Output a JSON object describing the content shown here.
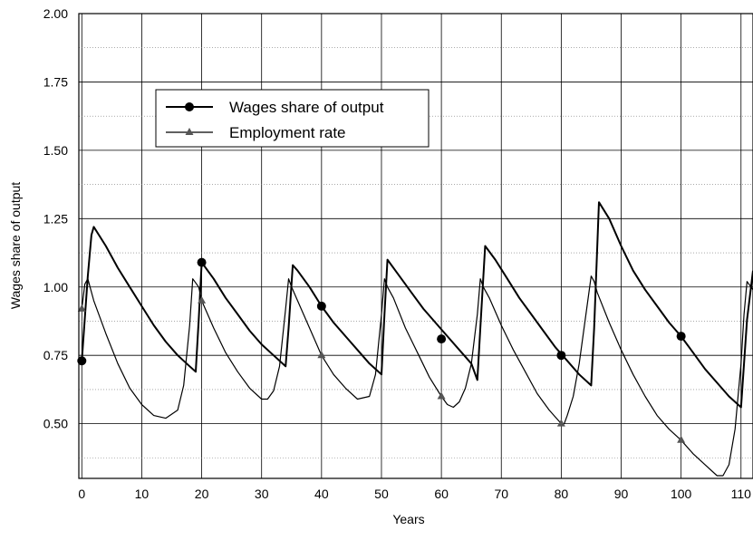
{
  "chart_data": {
    "type": "line",
    "title": "",
    "xlabel": "Years",
    "ylabel": "Wages share of output",
    "xlim": [
      -0.5,
      112
    ],
    "ylim": [
      0.3,
      2.0
    ],
    "x_ticks": [
      0,
      10,
      20,
      30,
      40,
      50,
      60,
      70,
      80,
      90,
      100,
      110
    ],
    "y_ticks": [
      0.5,
      0.75,
      1.0,
      1.25,
      1.5,
      1.75,
      2.0
    ],
    "x_tick_labels": [
      "0",
      "10",
      "20",
      "30",
      "40",
      "50",
      "60",
      "70",
      "80",
      "90",
      "100",
      "110"
    ],
    "y_tick_labels": [
      "0.50",
      "0.75",
      "1.00",
      "1.25",
      "1.50",
      "1.75",
      "2.00"
    ],
    "grid": true,
    "legend_position": "top-left",
    "series": [
      {
        "name": "Wages share of output",
        "marker": "circle",
        "line_width": 2,
        "color": "#000000",
        "x": [
          0,
          1,
          1.6,
          2,
          4,
          6,
          8,
          10,
          12,
          14,
          16,
          18,
          19,
          19.5,
          20,
          22,
          24,
          26,
          28,
          30,
          32,
          34,
          34.5,
          35.2,
          36,
          38,
          40,
          42,
          44,
          46,
          48,
          50,
          50.5,
          51,
          53,
          55,
          57,
          59,
          61,
          63,
          65,
          66,
          66.5,
          67.3,
          69,
          71,
          73,
          75,
          77,
          79,
          81,
          83,
          85,
          85.5,
          86.3,
          88,
          90,
          92,
          94,
          96,
          98,
          100,
          102,
          104,
          106,
          108,
          110,
          111,
          112
        ],
        "y": [
          0.73,
          1.04,
          1.19,
          1.22,
          1.15,
          1.07,
          1.0,
          0.93,
          0.86,
          0.8,
          0.75,
          0.71,
          0.69,
          0.88,
          1.09,
          1.03,
          0.96,
          0.9,
          0.84,
          0.79,
          0.75,
          0.71,
          0.85,
          1.08,
          1.06,
          1.0,
          0.93,
          0.87,
          0.82,
          0.77,
          0.72,
          0.68,
          0.9,
          1.1,
          1.04,
          0.98,
          0.92,
          0.87,
          0.82,
          0.77,
          0.72,
          0.66,
          0.85,
          1.15,
          1.1,
          1.03,
          0.96,
          0.9,
          0.84,
          0.78,
          0.73,
          0.68,
          0.64,
          0.85,
          1.31,
          1.25,
          1.15,
          1.06,
          0.99,
          0.93,
          0.87,
          0.82,
          0.76,
          0.7,
          0.65,
          0.6,
          0.56,
          0.88,
          1.06
        ],
        "markers_x": [
          0,
          20,
          40,
          60,
          80,
          100
        ],
        "markers_y": [
          0.73,
          1.09,
          0.93,
          0.81,
          0.75,
          0.82
        ]
      },
      {
        "name": "Employment rate",
        "marker": "triangle",
        "line_width": 1.2,
        "color": "#000000",
        "x": [
          0,
          0.5,
          1,
          2,
          4,
          6,
          8,
          10,
          12,
          14,
          16,
          17,
          18,
          18.5,
          19.5,
          20,
          22,
          24,
          26,
          28,
          30,
          31,
          32,
          33,
          34,
          34.5,
          35,
          36,
          38,
          40,
          42,
          44,
          46,
          48,
          49,
          50,
          50.5,
          51,
          52,
          54,
          56,
          58,
          60,
          61,
          62,
          63,
          64,
          65,
          66,
          66.5,
          67,
          68,
          70,
          72,
          74,
          76,
          78,
          80,
          80.5,
          81,
          82,
          83,
          84,
          85,
          85.5,
          86,
          88,
          90,
          92,
          94,
          96,
          98,
          100,
          102,
          104,
          106,
          107,
          108,
          109,
          110,
          110.5,
          111,
          112
        ],
        "y": [
          0.92,
          1.01,
          1.03,
          0.95,
          0.83,
          0.72,
          0.63,
          0.57,
          0.53,
          0.52,
          0.55,
          0.64,
          0.86,
          1.03,
          1.0,
          0.95,
          0.85,
          0.76,
          0.69,
          0.63,
          0.59,
          0.59,
          0.62,
          0.71,
          0.92,
          1.03,
          1.0,
          0.95,
          0.85,
          0.75,
          0.68,
          0.63,
          0.59,
          0.6,
          0.68,
          0.9,
          1.03,
          1.0,
          0.96,
          0.85,
          0.76,
          0.67,
          0.6,
          0.57,
          0.56,
          0.58,
          0.63,
          0.72,
          0.9,
          1.03,
          1.0,
          0.96,
          0.86,
          0.77,
          0.69,
          0.61,
          0.55,
          0.5,
          0.5,
          0.53,
          0.6,
          0.72,
          0.88,
          1.04,
          1.02,
          0.98,
          0.87,
          0.77,
          0.68,
          0.6,
          0.53,
          0.48,
          0.44,
          0.39,
          0.35,
          0.31,
          0.31,
          0.35,
          0.48,
          0.72,
          0.9,
          1.02,
          0.99
        ],
        "markers_x": [
          0,
          20,
          40,
          60,
          80,
          100
        ],
        "markers_y": [
          0.92,
          0.95,
          0.75,
          0.6,
          0.5,
          0.44
        ]
      }
    ]
  }
}
